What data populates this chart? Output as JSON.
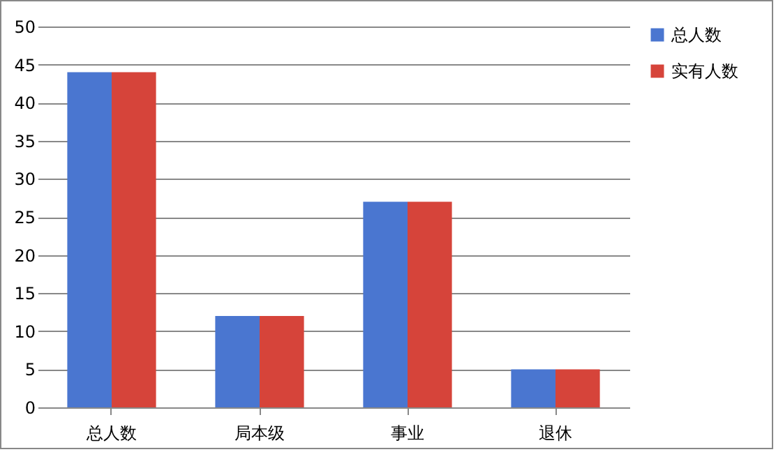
{
  "chart_data": {
    "type": "bar",
    "categories": [
      "总人数",
      "局本级",
      "事业",
      "退休"
    ],
    "series": [
      {
        "name": "总人数",
        "color": "#4a76d0",
        "values": [
          44,
          12,
          27,
          5
        ]
      },
      {
        "name": "实有人数",
        "color": "#d6443a",
        "values": [
          44,
          12,
          27,
          5
        ]
      }
    ],
    "ylim": [
      0,
      50
    ],
    "yticks": [
      0,
      5,
      10,
      15,
      20,
      25,
      30,
      35,
      40,
      45,
      50
    ],
    "grid": "y",
    "legend": "right"
  }
}
